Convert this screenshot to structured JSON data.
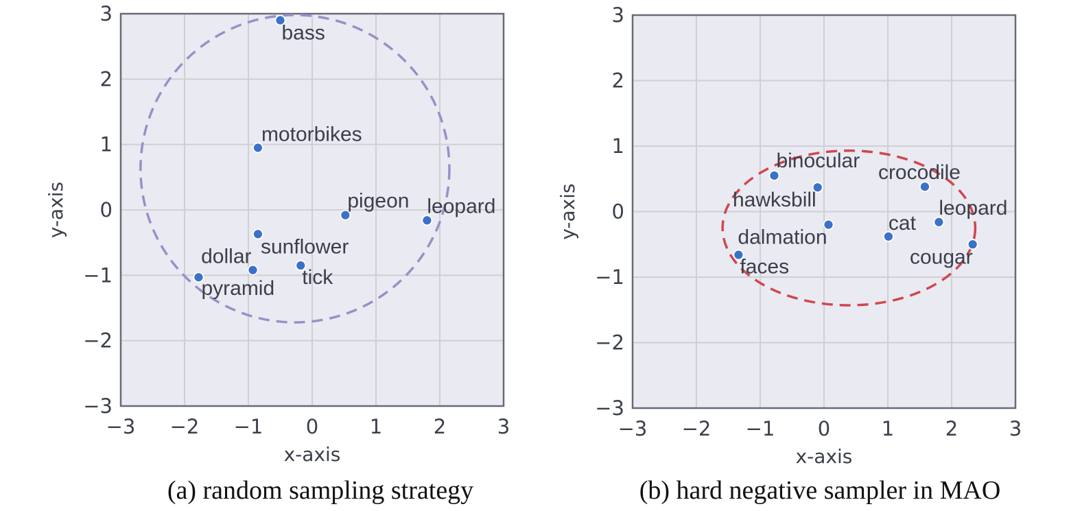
{
  "chart_data": [
    {
      "type": "scatter",
      "caption": "(a) random sampling strategy",
      "xlabel": "x-axis",
      "ylabel": "y-axis",
      "xlim": [
        -3,
        3
      ],
      "ylim": [
        -3,
        3
      ],
      "xticks": [
        "−3",
        "−2",
        "−1",
        "0",
        "1",
        "2",
        "3"
      ],
      "yticks": [
        "−3",
        "−2",
        "−1",
        "0",
        "1",
        "2",
        "3"
      ],
      "grid": true,
      "points": [
        {
          "label": "bass",
          "x": -0.5,
          "y": 2.9
        },
        {
          "label": "motorbikes",
          "x": -0.85,
          "y": 0.95
        },
        {
          "label": "pigeon",
          "x": 0.52,
          "y": -0.08
        },
        {
          "label": "leopard",
          "x": 1.8,
          "y": -0.16
        },
        {
          "label": "sunflower",
          "x": -0.85,
          "y": -0.37
        },
        {
          "label": "dollar",
          "x": -0.93,
          "y": -0.92
        },
        {
          "label": "pyramid",
          "x": -1.78,
          "y": -1.03
        },
        {
          "label": "tick",
          "x": -0.18,
          "y": -0.85
        }
      ],
      "ellipse": {
        "cx": -0.27,
        "cy": 0.63,
        "rx": 2.42,
        "ry": 2.35,
        "color": "#9b8fc7"
      },
      "marker_color": "#3a72c8"
    },
    {
      "type": "scatter",
      "caption": "(b) hard negative sampler in MAO",
      "xlabel": "x-axis",
      "ylabel": "y-axis",
      "xlim": [
        -3,
        3
      ],
      "ylim": [
        -3,
        3
      ],
      "xticks": [
        "−3",
        "−2",
        "−1",
        "0",
        "1",
        "2",
        "3"
      ],
      "yticks": [
        "−3",
        "−2",
        "−1",
        "0",
        "1",
        "2",
        "3"
      ],
      "grid": true,
      "points": [
        {
          "label": "binocular",
          "x": -0.78,
          "y": 0.55
        },
        {
          "label": "hawksbill",
          "x": -0.1,
          "y": 0.37
        },
        {
          "label": "crocodile",
          "x": 1.58,
          "y": 0.38
        },
        {
          "label": "leopard",
          "x": 1.8,
          "y": -0.16
        },
        {
          "label": "dalmation",
          "x": 0.07,
          "y": -0.2
        },
        {
          "label": "cat",
          "x": 1.01,
          "y": -0.38
        },
        {
          "label": "faces",
          "x": -1.34,
          "y": -0.66
        },
        {
          "label": "cougar",
          "x": 2.33,
          "y": -0.5
        }
      ],
      "ellipse": {
        "cx": 0.39,
        "cy": -0.25,
        "rx": 1.98,
        "ry": 1.18,
        "color": "#d0474e"
      },
      "marker_color": "#3a72c8"
    }
  ]
}
